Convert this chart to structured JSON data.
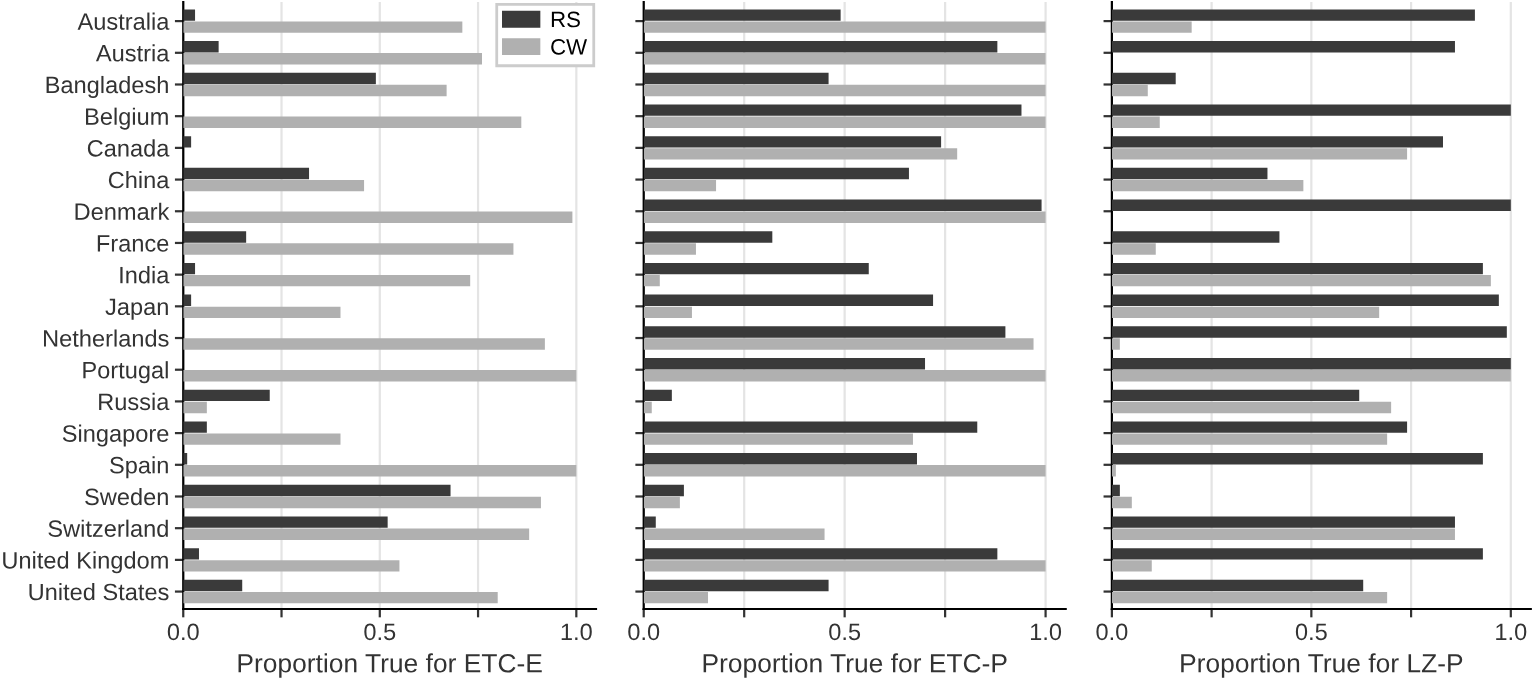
{
  "chart_data": [
    {
      "type": "bar",
      "orientation": "horizontal",
      "xlabel": "Proportion True for ETC-E",
      "categories": [
        "Australia",
        "Austria",
        "Bangladesh",
        "Belgium",
        "Canada",
        "China",
        "Denmark",
        "France",
        "India",
        "Japan",
        "Netherlands",
        "Portugal",
        "Russia",
        "Singapore",
        "Spain",
        "Sweden",
        "Switzerland",
        "United Kingdom",
        "United States"
      ],
      "series": [
        {
          "name": "RS",
          "color": "#3a3a3a",
          "values": [
            0.03,
            0.09,
            0.49,
            0,
            0.02,
            0.32,
            0,
            0.16,
            0.03,
            0.02,
            0,
            0,
            0.22,
            0.06,
            0.01,
            0.68,
            0.52,
            0.04,
            0.15
          ]
        },
        {
          "name": "CW",
          "color": "#b0b0b0",
          "values": [
            0.71,
            0.76,
            0.67,
            0.86,
            0,
            0.46,
            0.99,
            0.84,
            0.73,
            0.4,
            0.92,
            1.0,
            0.06,
            0.4,
            1.0,
            0.91,
            0.88,
            0.55,
            0.8
          ]
        }
      ],
      "xlim": [
        0,
        1.05
      ],
      "xticks": [
        {
          "value": 0,
          "label": "0.0"
        },
        {
          "value": 0.25,
          "label": null
        },
        {
          "value": 0.5,
          "label": "0.5"
        },
        {
          "value": 0.75,
          "label": null
        },
        {
          "value": 1,
          "label": "1.0"
        }
      ],
      "grid": "x",
      "legend": "top right"
    },
    {
      "type": "bar",
      "orientation": "horizontal",
      "xlabel": "Proportion True for ETC-P",
      "categories": [
        null,
        null,
        null,
        null,
        null,
        null,
        null,
        null,
        null,
        null,
        null,
        null,
        null,
        null,
        null,
        null,
        null,
        null,
        null
      ],
      "series": [
        {
          "color": "#3a3a3a",
          "values": [
            0.49,
            0.88,
            0.46,
            0.94,
            0.74,
            0.66,
            0.99,
            0.32,
            0.56,
            0.72,
            0.9,
            0.7,
            0.07,
            0.83,
            0.68,
            0.1,
            0.03,
            0.88,
            0.46
          ]
        },
        {
          "color": "#b0b0b0",
          "values": [
            1.0,
            1.0,
            1.0,
            1.0,
            0.78,
            0.18,
            1.0,
            0.13,
            0.04,
            0.12,
            0.97,
            1.0,
            0.02,
            0.67,
            1.0,
            0.09,
            0.45,
            1.0,
            0.16
          ]
        }
      ],
      "xlim": [
        0,
        1.05
      ],
      "xticks": [
        {
          "value": 0,
          "label": "0.0"
        },
        {
          "value": 0.25,
          "label": null
        },
        0.5,
        {
          "value": 0.75,
          "label": null
        },
        {
          "value": 1,
          "label": "1.0"
        }
      ],
      "grid": "x",
      "tick_labels": "x"
    },
    {
      "type": "bar",
      "orientation": "horizontal",
      "xlabel": "Proportion True for LZ-P",
      "categories": [
        null,
        null,
        null,
        null,
        null,
        null,
        null,
        null,
        null,
        null,
        null,
        null,
        null,
        null,
        null,
        null,
        null,
        null,
        null
      ],
      "series": [
        {
          "color": "#3a3a3a",
          "values": [
            0.91,
            0.86,
            0.16,
            1.0,
            0.83,
            0.39,
            1.0,
            0.42,
            0.93,
            0.97,
            0.99,
            1.0,
            0.62,
            0.74,
            0.93,
            0.02,
            0.86,
            0.93,
            0.63
          ]
        },
        {
          "color": "#b0b0b0",
          "values": [
            0.2,
            0,
            0.09,
            0.12,
            0.74,
            0.48,
            0,
            0.11,
            0.95,
            0.67,
            0.02,
            1.0,
            0.7,
            0.69,
            0.01,
            0.05,
            0.86,
            0.1,
            0.69
          ]
        }
      ],
      "xlim": [
        0,
        1.05
      ],
      "xticks": [
        {
          "value": 0,
          "label": "0.0"
        },
        {
          "value": 0.25,
          "label": null
        },
        0.5,
        {
          "value": 0.75,
          "label": null
        },
        {
          "value": 1,
          "label": "1.0"
        }
      ],
      "grid": "x",
      "tick_labels": "x"
    }
  ]
}
